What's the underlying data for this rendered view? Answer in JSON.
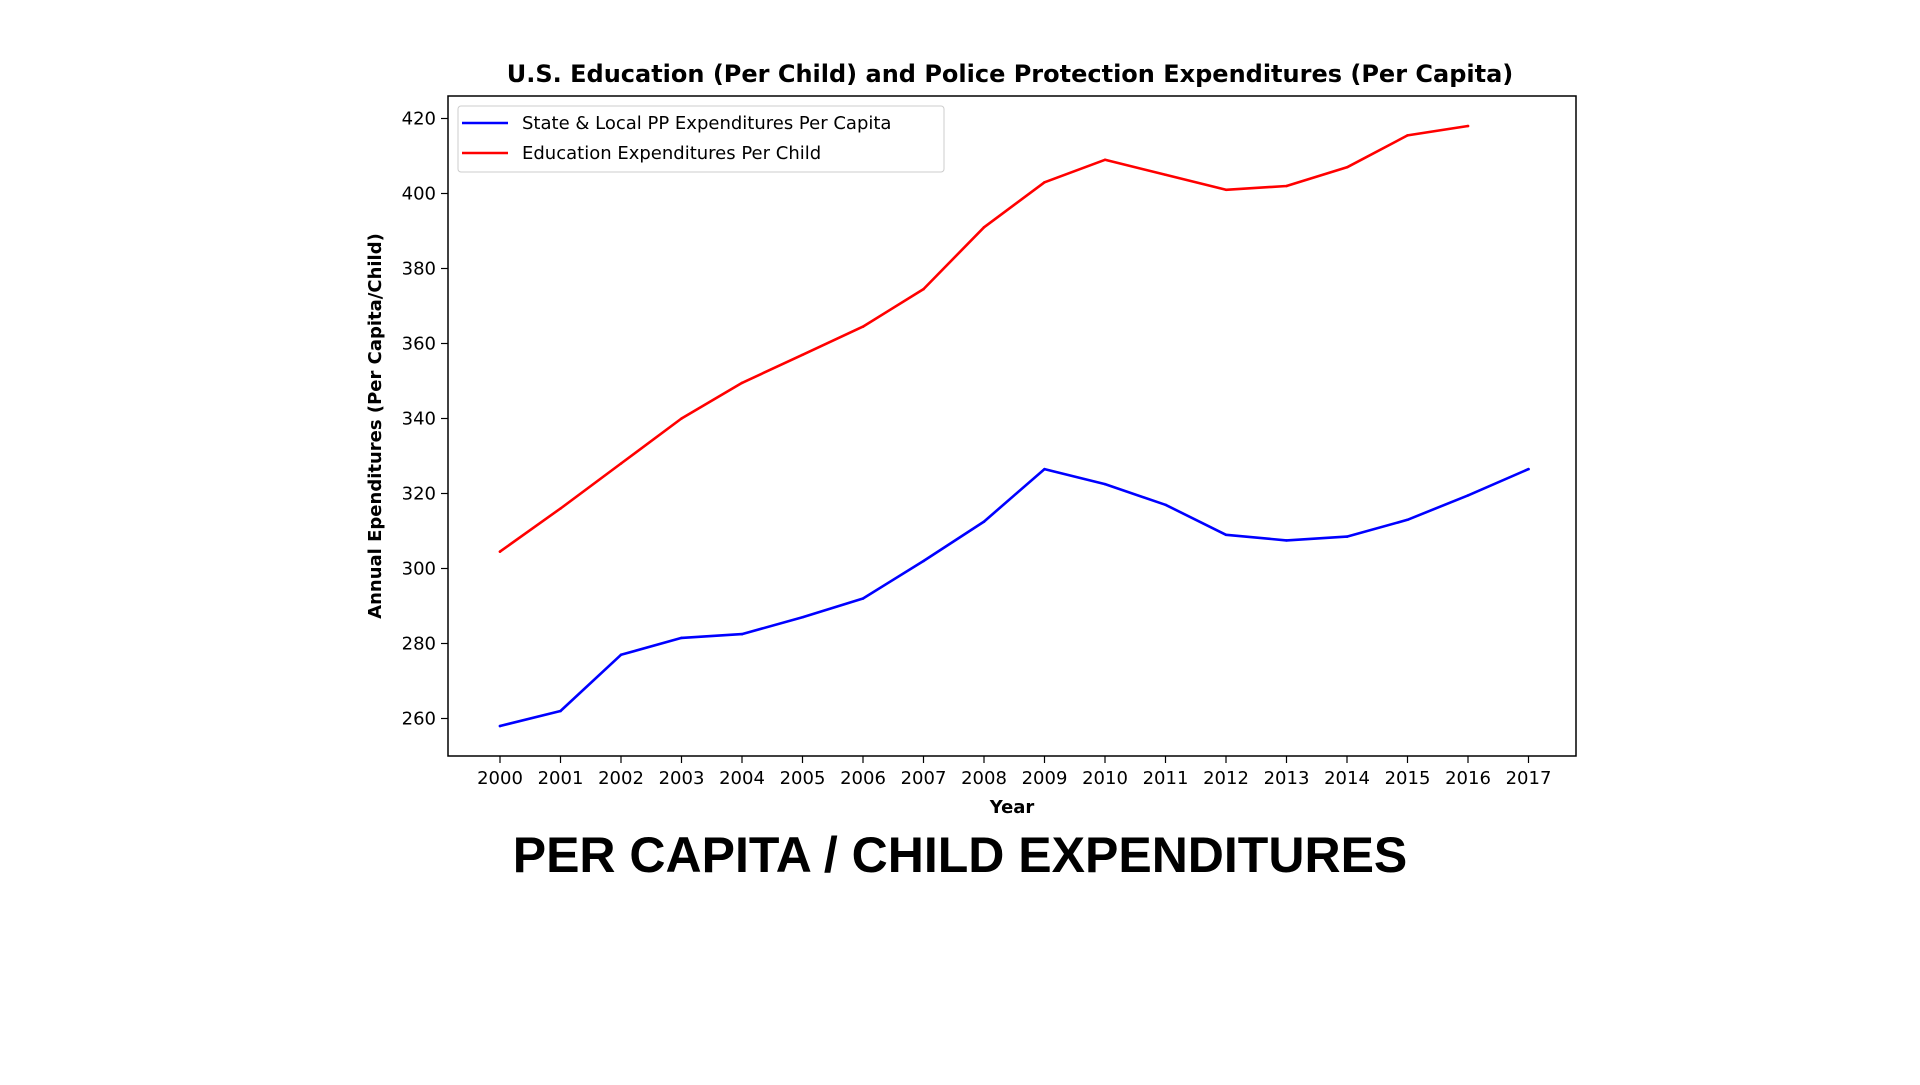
{
  "caption": "PER CAPITA / CHILD EXPENDITURES",
  "chart_data": {
    "type": "line",
    "title": "U.S. Education (Per Child) and Police Protection Expenditures (Per Capita)",
    "xlabel": "Year",
    "ylabel": "Annual Ependitures (Per Capita/Child)",
    "x": [
      "2000",
      "2001",
      "2002",
      "2003",
      "2004",
      "2005",
      "2006",
      "2007",
      "2008",
      "2009",
      "2010",
      "2011",
      "2012",
      "2013",
      "2014",
      "2015",
      "2016",
      "2017"
    ],
    "yticks": [
      "260",
      "280",
      "300",
      "320",
      "340",
      "360",
      "380",
      "400",
      "420"
    ],
    "ylim": [
      250,
      426
    ],
    "grid": false,
    "legend_position": "upper-left",
    "series": [
      {
        "name": "State & Local PP Expenditures Per Capita",
        "color": "#0000ff",
        "values": [
          258,
          262,
          277,
          281.5,
          282.5,
          287,
          292,
          302,
          312.5,
          326.5,
          322.5,
          317,
          309,
          307.5,
          308.5,
          313,
          319.5,
          326.5
        ]
      },
      {
        "name": "Education Expenditures Per Child",
        "color": "#ff0000",
        "values": [
          304.5,
          316,
          328,
          340,
          349.5,
          357,
          364.5,
          374.5,
          391,
          403,
          409,
          405,
          401,
          402,
          407,
          415.5,
          418,
          null
        ]
      }
    ]
  }
}
